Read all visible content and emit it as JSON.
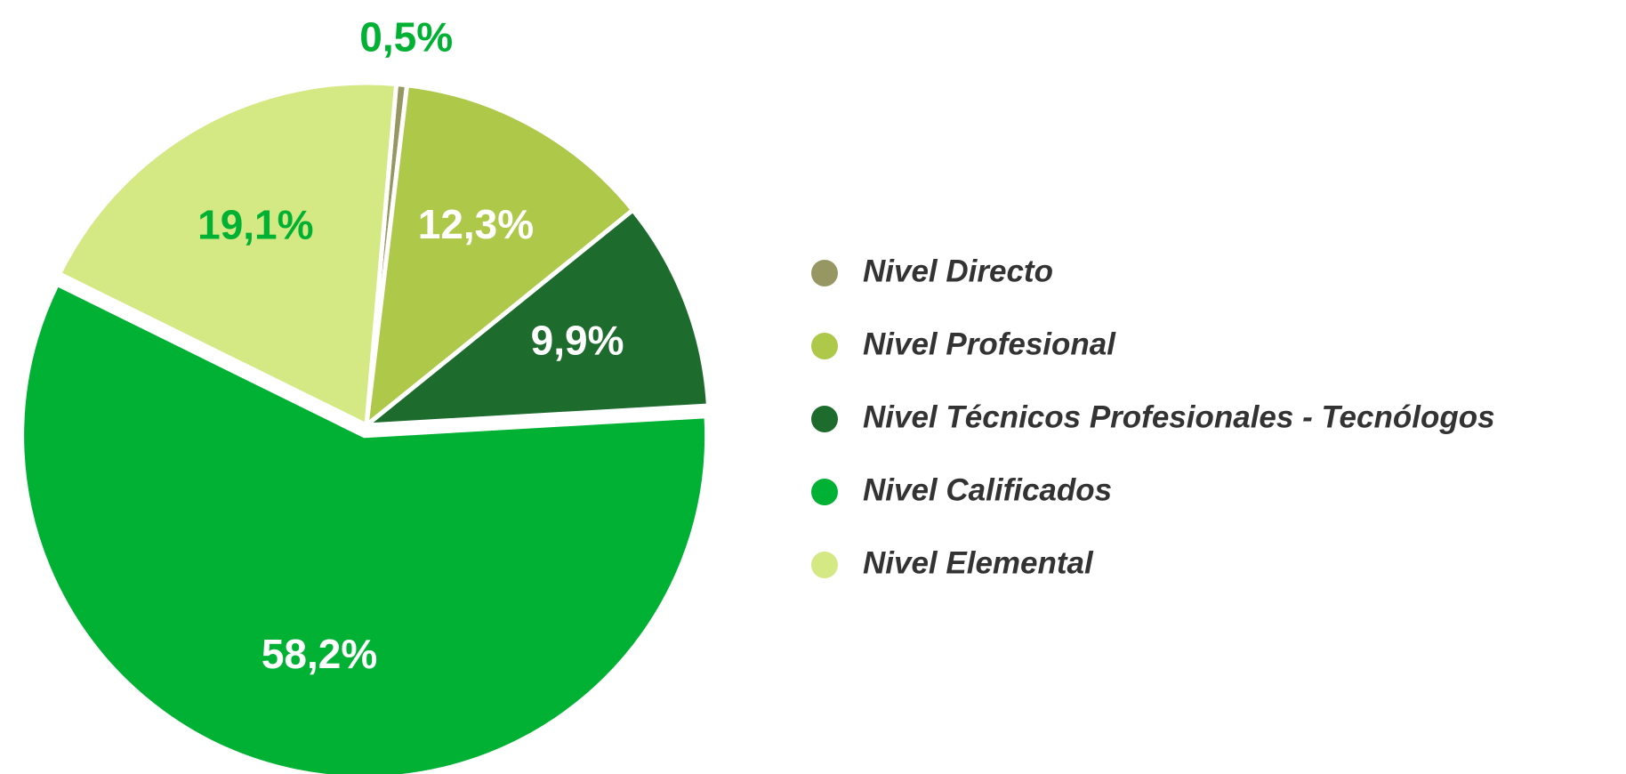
{
  "chart_data": {
    "type": "pie",
    "categories": [
      "Nivel Directo",
      "Nivel Profesional",
      "Nivel Técnicos Profesionales - Tecnólogos",
      "Nivel Calificados",
      "Nivel Elemental"
    ],
    "values": [
      0.5,
      12.3,
      9.9,
      58.2,
      19.1
    ],
    "value_labels": [
      "0,5%",
      "12,3%",
      "9,9%",
      "58,2%",
      "19,1%"
    ],
    "colors": [
      "#979764",
      "#aec84a",
      "#1e6b2e",
      "#00b133",
      "#d4e983"
    ],
    "label_colors": [
      "#00b133",
      "#ffffff",
      "#ffffff",
      "#ffffff",
      "#00b133"
    ],
    "legend": "right"
  }
}
